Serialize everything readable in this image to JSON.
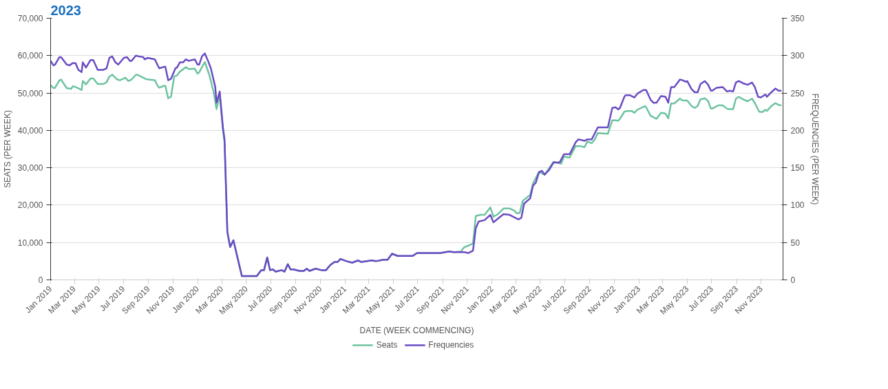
{
  "chart_data": {
    "type": "line",
    "title": "2023",
    "xlabel": "DATE (WEEK COMMENCING)",
    "ylabel": "SEATS (PER WEEK)",
    "y2label": "FREQUENCIES (PER WEEK)",
    "xlim": [
      "2019-01-01",
      "2023-12-25"
    ],
    "xticks": [
      {
        "value": "2019-01-01",
        "label": "Jan 2019"
      },
      {
        "value": "2019-03-01",
        "label": "Mar 2019"
      },
      {
        "value": "2019-05-01",
        "label": "May 2019"
      },
      {
        "value": "2019-07-01",
        "label": "Jul 2019"
      },
      {
        "value": "2019-09-01",
        "label": "Sep 2019"
      },
      {
        "value": "2019-11-01",
        "label": "Nov 2019"
      },
      {
        "value": "2020-01-01",
        "label": "Jan 2020"
      },
      {
        "value": "2020-03-01",
        "label": "Mar 2020"
      },
      {
        "value": "2020-05-01",
        "label": "May 2020"
      },
      {
        "value": "2020-07-01",
        "label": "Jul 2020"
      },
      {
        "value": "2020-09-01",
        "label": "Sep 2020"
      },
      {
        "value": "2020-11-01",
        "label": "Nov 2020"
      },
      {
        "value": "2021-01-01",
        "label": "Jan 2021"
      },
      {
        "value": "2021-03-01",
        "label": "Mar 2021"
      },
      {
        "value": "2021-05-01",
        "label": "May 2021"
      },
      {
        "value": "2021-07-01",
        "label": "Jul 2021"
      },
      {
        "value": "2021-09-01",
        "label": "Sep 2021"
      },
      {
        "value": "2021-11-01",
        "label": "Nov 2021"
      },
      {
        "value": "2022-01-01",
        "label": "Jan 2022"
      },
      {
        "value": "2022-03-01",
        "label": "Mar 2022"
      },
      {
        "value": "2022-05-01",
        "label": "May 2022"
      },
      {
        "value": "2022-07-01",
        "label": "Jul 2022"
      },
      {
        "value": "2022-09-01",
        "label": "Sep 2022"
      },
      {
        "value": "2022-11-01",
        "label": "Nov 2022"
      },
      {
        "value": "2023-01-01",
        "label": "Jan 2023"
      },
      {
        "value": "2023-03-01",
        "label": "Mar 2023"
      },
      {
        "value": "2023-05-01",
        "label": "May 2023"
      },
      {
        "value": "2023-07-01",
        "label": "Jul 2023"
      },
      {
        "value": "2023-09-01",
        "label": "Sep 2023"
      },
      {
        "value": "2023-11-01",
        "label": "Nov 2023"
      }
    ],
    "ylim": [
      0,
      70000
    ],
    "yticks": [
      0,
      {
        "value": 10000,
        "label": "10,000"
      },
      {
        "value": 20000,
        "label": "20,000"
      },
      {
        "value": 30000,
        "label": "30,000"
      },
      {
        "value": 40000,
        "label": "40,000"
      },
      {
        "value": 50000,
        "label": "50,000"
      },
      {
        "value": 60000,
        "label": "60,000"
      },
      {
        "value": 70000,
        "label": "70,000"
      }
    ],
    "y2lim": [
      0,
      350
    ],
    "y2ticks": [
      0,
      50,
      100,
      150,
      200,
      250,
      300,
      350
    ],
    "grid": "y",
    "legend": "bottom",
    "marker": "none",
    "line_style": "solid",
    "series": [
      {
        "name": "Seats",
        "color": "#6cc3a0",
        "x": [
          "2019-01-01",
          "2019-01-08",
          "2019-01-12",
          "2019-01-23",
          "2019-01-27",
          "2019-02-10",
          "2019-02-21",
          "2019-02-25",
          "2019-03-04",
          "2019-03-19",
          "2019-03-22",
          "2019-03-30",
          "2019-04-10",
          "2019-04-17",
          "2019-04-28",
          "2019-05-12",
          "2019-05-20",
          "2019-05-27",
          "2019-06-03",
          "2019-06-14",
          "2019-06-22",
          "2019-07-06",
          "2019-07-13",
          "2019-07-21",
          "2019-08-01",
          "2019-08-04",
          "2019-08-26",
          "2019-09-17",
          "2019-09-24",
          "2019-09-28",
          "2019-10-09",
          "2019-10-13",
          "2019-10-20",
          "2019-10-27",
          "2019-11-04",
          "2019-11-11",
          "2019-11-18",
          "2019-12-03",
          "2019-12-10",
          "2019-12-25",
          "2020-01-01",
          "2020-01-05",
          "2020-01-19",
          "2020-01-30",
          "2020-02-10",
          "2020-02-17",
          "2020-02-25",
          "2020-03-04",
          "2020-03-08",
          "2020-03-15",
          "2020-03-22",
          "2020-03-30",
          "2020-04-10",
          "2020-04-17",
          "2020-04-20",
          "2020-05-27",
          "2020-06-07",
          "2020-06-14",
          "2020-06-22",
          "2020-06-29",
          "2020-07-06",
          "2020-07-13",
          "2020-07-28",
          "2020-08-04",
          "2020-08-12",
          "2020-08-19",
          "2020-08-26",
          "2020-09-10",
          "2020-09-21",
          "2020-09-28",
          "2020-10-05",
          "2020-10-20",
          "2020-11-04",
          "2020-11-15",
          "2020-11-26",
          "2020-12-06",
          "2020-12-14",
          "2020-12-21",
          "2021-01-05",
          "2021-01-19",
          "2021-02-03",
          "2021-02-10",
          "2021-02-25",
          "2021-03-08",
          "2021-03-19",
          "2021-04-06",
          "2021-04-17",
          "2021-04-28",
          "2021-05-12",
          "2021-06-18",
          "2021-06-29",
          "2021-08-26",
          "2021-09-17",
          "2021-09-28",
          "2021-10-16",
          "2021-10-24",
          "2021-11-04",
          "2021-11-15",
          "2021-11-22",
          "2021-12-03",
          "2021-12-14",
          "2021-12-28",
          "2022-01-05",
          "2022-01-16",
          "2022-01-30",
          "2022-02-14",
          "2022-02-25",
          "2022-03-04",
          "2022-03-11",
          "2022-03-19",
          "2022-04-06",
          "2022-04-13",
          "2022-04-28",
          "2022-05-12",
          "2022-06-03",
          "2022-06-22",
          "2022-06-29",
          "2022-07-13",
          "2022-07-28",
          "2022-08-08",
          "2022-08-19",
          "2022-08-26",
          "2022-09-06",
          "2022-09-13",
          "2022-09-21",
          "2022-10-16",
          "2022-10-27",
          "2022-11-04",
          "2022-11-11",
          "2022-11-15",
          "2022-11-26",
          "2022-12-03",
          "2022-12-14",
          "2022-12-21",
          "2022-12-28",
          "2023-01-16",
          "2023-01-19",
          "2023-01-30",
          "2023-02-14",
          "2023-02-25",
          "2023-03-08",
          "2023-03-15",
          "2023-03-22",
          "2023-03-30",
          "2023-04-13",
          "2023-04-20",
          "2023-05-01",
          "2023-05-12",
          "2023-05-20",
          "2023-05-27",
          "2023-06-03",
          "2023-06-14",
          "2023-06-22",
          "2023-06-29",
          "2023-07-02",
          "2023-07-17",
          "2023-07-28",
          "2023-08-08",
          "2023-08-12",
          "2023-08-23",
          "2023-08-30",
          "2023-09-06",
          "2023-09-17",
          "2023-09-28",
          "2023-10-09",
          "2023-10-16",
          "2023-10-27",
          "2023-11-04",
          "2023-11-11",
          "2023-11-15",
          "2023-11-26",
          "2023-12-06",
          "2023-12-14",
          "2023-12-21"
        ],
        "values": [
          52100,
          51300,
          51400,
          53400,
          53600,
          51300,
          51100,
          51800,
          51600,
          50800,
          53200,
          52300,
          53900,
          53900,
          52400,
          52400,
          52900,
          54400,
          54900,
          53700,
          53400,
          54100,
          53200,
          53600,
          54900,
          54900,
          53700,
          53400,
          51900,
          51400,
          51900,
          51900,
          48600,
          49000,
          54400,
          54700,
          55700,
          56900,
          56400,
          56500,
          55200,
          55500,
          58300,
          54900,
          50300,
          45700,
          49500,
          40100,
          36800,
          12800,
          8800,
          10600,
          5600,
          2400,
          1000,
          1000,
          2600,
          2600,
          6000,
          2600,
          2800,
          2200,
          2600,
          2200,
          4200,
          2800,
          2800,
          2400,
          2400,
          3000,
          2400,
          3000,
          2600,
          2600,
          4000,
          4800,
          4800,
          5600,
          5000,
          4600,
          5200,
          4800,
          5000,
          5200,
          5000,
          5400,
          5400,
          7000,
          6400,
          6400,
          7200,
          7200,
          7600,
          7400,
          7600,
          8700,
          9200,
          9700,
          17100,
          17400,
          17400,
          19400,
          16900,
          17600,
          19100,
          19100,
          18600,
          17800,
          17900,
          21200,
          22700,
          25800,
          28900,
          28100,
          31600,
          31100,
          33000,
          32700,
          35800,
          35800,
          35500,
          37000,
          36600,
          37500,
          39300,
          39100,
          42700,
          42700,
          42600,
          43100,
          45000,
          45200,
          45200,
          44700,
          45500,
          46500,
          46200,
          43900,
          43100,
          44700,
          44500,
          43200,
          47200,
          47200,
          48500,
          48000,
          48000,
          46500,
          46000,
          46500,
          48300,
          48600,
          47800,
          45800,
          45800,
          46700,
          46700,
          45800,
          45700,
          45700,
          48500,
          49000,
          48300,
          47800,
          48500,
          47300,
          45000,
          44900,
          45500,
          45200,
          46500,
          47300,
          46800,
          46700
        ]
      },
      {
        "name": "Frequencies",
        "color": "#6a4bc4",
        "axis": "y2",
        "x": [
          "2019-01-01",
          "2019-01-08",
          "2019-01-12",
          "2019-01-23",
          "2019-01-27",
          "2019-02-10",
          "2019-02-17",
          "2019-02-25",
          "2019-03-04",
          "2019-03-11",
          "2019-03-19",
          "2019-03-22",
          "2019-03-30",
          "2019-04-10",
          "2019-04-17",
          "2019-04-28",
          "2019-05-12",
          "2019-05-20",
          "2019-05-27",
          "2019-06-03",
          "2019-06-11",
          "2019-06-18",
          "2019-07-02",
          "2019-07-10",
          "2019-07-17",
          "2019-07-21",
          "2019-08-01",
          "2019-08-08",
          "2019-08-19",
          "2019-08-23",
          "2019-08-30",
          "2019-09-17",
          "2019-09-24",
          "2019-09-28",
          "2019-10-09",
          "2019-10-13",
          "2019-10-20",
          "2019-10-27",
          "2019-11-07",
          "2019-11-11",
          "2019-11-18",
          "2019-11-26",
          "2019-12-03",
          "2019-12-10",
          "2019-12-25",
          "2020-01-01",
          "2020-01-05",
          "2020-01-12",
          "2020-01-19",
          "2020-01-27",
          "2020-02-03",
          "2020-02-14",
          "2020-02-17",
          "2020-02-25",
          "2020-03-04",
          "2020-03-08",
          "2020-03-15",
          "2020-03-22",
          "2020-03-30",
          "2020-04-10",
          "2020-04-17",
          "2020-04-20",
          "2020-05-27",
          "2020-06-07",
          "2020-06-14",
          "2020-06-22",
          "2020-06-29",
          "2020-07-06",
          "2020-07-13",
          "2020-07-28",
          "2020-08-04",
          "2020-08-12",
          "2020-08-19",
          "2020-08-26",
          "2020-09-10",
          "2020-09-21",
          "2020-09-28",
          "2020-10-05",
          "2020-10-20",
          "2020-11-04",
          "2020-11-15",
          "2020-11-26",
          "2020-12-06",
          "2020-12-14",
          "2020-12-21",
          "2021-01-05",
          "2021-01-19",
          "2021-02-03",
          "2021-02-10",
          "2021-02-25",
          "2021-03-08",
          "2021-03-19",
          "2021-04-06",
          "2021-04-17",
          "2021-04-28",
          "2021-05-12",
          "2021-06-18",
          "2021-06-29",
          "2021-08-26",
          "2021-09-17",
          "2021-09-28",
          "2021-10-24",
          "2021-11-04",
          "2021-11-15",
          "2021-11-22",
          "2021-11-29",
          "2021-12-14",
          "2021-12-28",
          "2022-01-05",
          "2022-01-16",
          "2022-01-30",
          "2022-02-14",
          "2022-02-28",
          "2022-03-08",
          "2022-03-15",
          "2022-03-22",
          "2022-04-06",
          "2022-04-13",
          "2022-04-20",
          "2022-04-28",
          "2022-05-05",
          "2022-05-12",
          "2022-05-23",
          "2022-06-03",
          "2022-06-18",
          "2022-06-29",
          "2022-07-13",
          "2022-07-28",
          "2022-08-04",
          "2022-08-19",
          "2022-08-26",
          "2022-09-06",
          "2022-09-21",
          "2022-10-16",
          "2022-10-27",
          "2022-11-04",
          "2022-11-11",
          "2022-11-15",
          "2022-11-26",
          "2022-11-29",
          "2022-12-10",
          "2022-12-21",
          "2022-12-28",
          "2023-01-12",
          "2023-01-19",
          "2023-01-30",
          "2023-02-06",
          "2023-02-14",
          "2023-02-25",
          "2023-03-08",
          "2023-03-15",
          "2023-03-22",
          "2023-03-30",
          "2023-04-13",
          "2023-04-20",
          "2023-04-28",
          "2023-05-01",
          "2023-05-12",
          "2023-05-20",
          "2023-05-27",
          "2023-06-03",
          "2023-06-14",
          "2023-06-22",
          "2023-06-29",
          "2023-07-02",
          "2023-07-13",
          "2023-07-28",
          "2023-08-08",
          "2023-08-15",
          "2023-08-23",
          "2023-08-30",
          "2023-09-06",
          "2023-09-17",
          "2023-09-28",
          "2023-10-09",
          "2023-10-16",
          "2023-10-24",
          "2023-10-31",
          "2023-11-11",
          "2023-11-15",
          "2023-11-26",
          "2023-12-06",
          "2023-12-14",
          "2023-12-21"
        ],
        "values": [
          293,
          287,
          288,
          298,
          298,
          288,
          287,
          290,
          290,
          281,
          278,
          291,
          284,
          294,
          294,
          281,
          281,
          283,
          297,
          299,
          291,
          288,
          297,
          298,
          293,
          293,
          300,
          299,
          298,
          295,
          297,
          295,
          287,
          283,
          285,
          285,
          267,
          269,
          283,
          284,
          291,
          291,
          295,
          293,
          295,
          288,
          288,
          299,
          303,
          293,
          283,
          258,
          237,
          252,
          204,
          188,
          64,
          44,
          53,
          28,
          12,
          5,
          5,
          13,
          13,
          30,
          13,
          14,
          11,
          13,
          11,
          21,
          14,
          14,
          12,
          12,
          15,
          12,
          15,
          13,
          13,
          20,
          24,
          24,
          28,
          25,
          23,
          26,
          24,
          25,
          26,
          25,
          27,
          27,
          35,
          32,
          32,
          36,
          36,
          38,
          37,
          37,
          36,
          39,
          69,
          78,
          80,
          87,
          77,
          82,
          88,
          87,
          83,
          81,
          83,
          102,
          109,
          126,
          130,
          144,
          146,
          141,
          147,
          157,
          157,
          168,
          168,
          184,
          188,
          186,
          188,
          188,
          204,
          204,
          230,
          231,
          228,
          230,
          245,
          247,
          247,
          244,
          249,
          254,
          254,
          241,
          237,
          237,
          246,
          245,
          237,
          258,
          258,
          268,
          267,
          265,
          266,
          255,
          251,
          251,
          262,
          266,
          261,
          253,
          253,
          257,
          258,
          252,
          253,
          252,
          264,
          266,
          263,
          261,
          264,
          258,
          245,
          244,
          248,
          245,
          251,
          256,
          253,
          253
        ]
      }
    ]
  }
}
